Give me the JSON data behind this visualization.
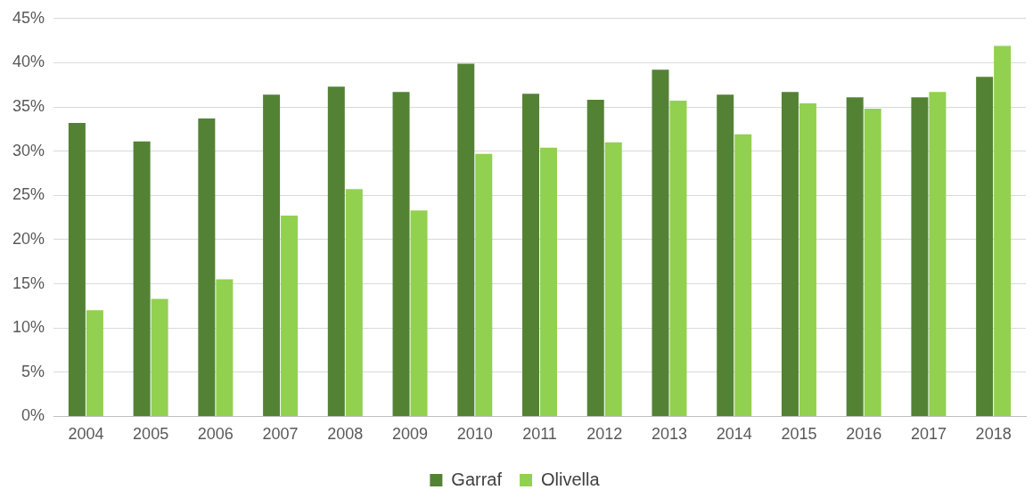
{
  "chart_data": {
    "type": "bar",
    "categories": [
      "2004",
      "2005",
      "2006",
      "2007",
      "2008",
      "2009",
      "2010",
      "2011",
      "2012",
      "2013",
      "2014",
      "2015",
      "2016",
      "2017",
      "2018"
    ],
    "series": [
      {
        "name": "Garraf",
        "color": "#548235",
        "values": [
          33.2,
          31.1,
          33.7,
          36.4,
          37.3,
          36.7,
          39.9,
          36.5,
          35.8,
          39.2,
          36.4,
          36.7,
          36.1,
          36.1,
          38.4
        ]
      },
      {
        "name": "Olivella",
        "color": "#92d050",
        "values": [
          12.0,
          13.3,
          15.5,
          22.7,
          25.7,
          23.3,
          29.7,
          30.4,
          31.0,
          35.7,
          31.9,
          35.4,
          34.8,
          36.7,
          41.9
        ]
      }
    ],
    "ylim": [
      0,
      45
    ],
    "yticks": [
      {
        "value": 0,
        "label": "0%"
      },
      {
        "value": 5,
        "label": "5%"
      },
      {
        "value": 10,
        "label": "10%"
      },
      {
        "value": 15,
        "label": "15%"
      },
      {
        "value": 20,
        "label": "20%"
      },
      {
        "value": 25,
        "label": "25%"
      },
      {
        "value": 30,
        "label": "30%"
      },
      {
        "value": 35,
        "label": "35%"
      },
      {
        "value": 40,
        "label": "40%"
      },
      {
        "value": 45,
        "label": "45%"
      }
    ],
    "grid": "y",
    "legend": "bottom"
  }
}
